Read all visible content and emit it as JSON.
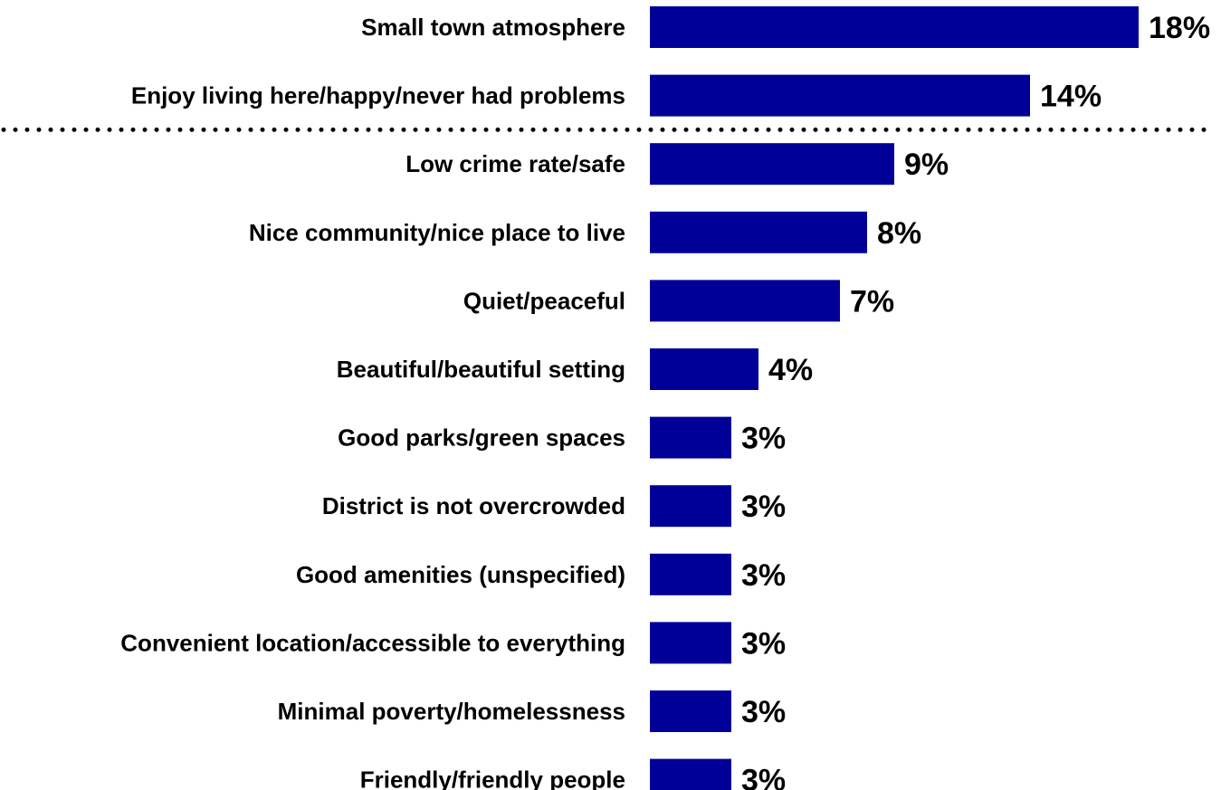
{
  "chart_data": {
    "type": "bar",
    "orientation": "horizontal",
    "categories": [
      "Small town atmosphere",
      "Enjoy living here/happy/never had problems",
      "Low crime rate/safe",
      "Nice community/nice place to live",
      "Quiet/peaceful",
      "Beautiful/beautiful setting",
      "Good parks/green spaces",
      "District is not overcrowded",
      "Good amenities (unspecified)",
      "Convenient location/accessible to everything",
      "Minimal poverty/homelessness",
      "Friendly/friendly people"
    ],
    "values": [
      18,
      14,
      9,
      8,
      7,
      4,
      3,
      3,
      3,
      3,
      3,
      3
    ],
    "value_labels": [
      "18%",
      "14%",
      "9%",
      "8%",
      "7%",
      "4%",
      "3%",
      "3%",
      "3%",
      "3%",
      "3%",
      "3%"
    ],
    "unit": "%",
    "bar_color": "#000099",
    "separator_after_index": 1,
    "title": "",
    "xlabel": "",
    "ylabel": "",
    "xlim": [
      0,
      18
    ],
    "grid": false,
    "legend": "none"
  }
}
